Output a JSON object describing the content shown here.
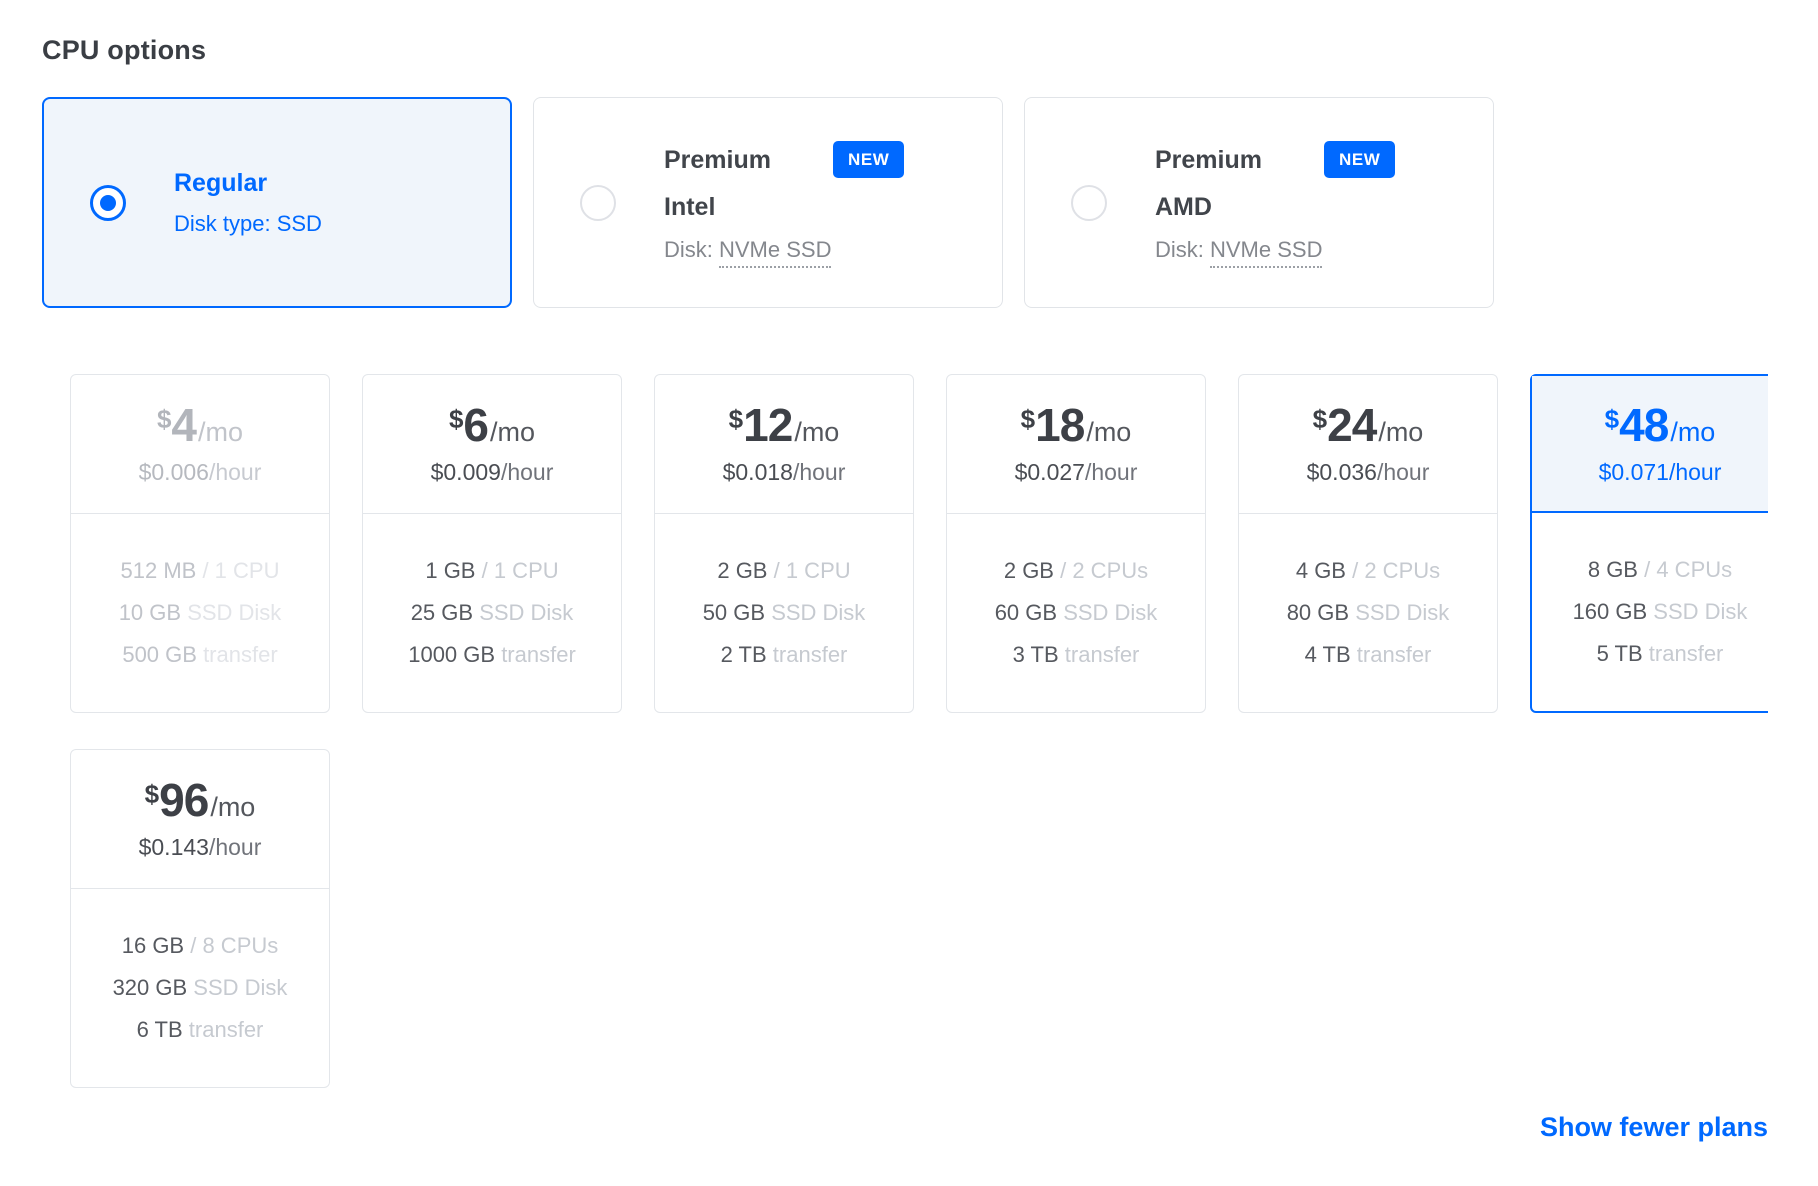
{
  "section": {
    "title": "CPU options"
  },
  "colors": {
    "accent": "#0069ff",
    "selected_bg": "#f0f5fb",
    "card_border": "#e3e6ea"
  },
  "cpu_options": [
    {
      "title": "Regular",
      "subtitle": "Disk type: SSD",
      "selected": true
    },
    {
      "title": "Premium",
      "brand": "Intel",
      "badge": "NEW",
      "disk_prefix": "Disk: ",
      "disk_type": "NVMe SSD",
      "selected": false
    },
    {
      "title": "Premium",
      "brand": "AMD",
      "badge": "NEW",
      "disk_prefix": "Disk: ",
      "disk_type": "NVMe SSD",
      "selected": false
    }
  ],
  "plans": [
    {
      "currency": "$",
      "monthly": "4",
      "monthly_unit": "/mo",
      "hourly": "$0.006",
      "hourly_unit": "/hour",
      "state": "disabled",
      "specs": [
        {
          "value": "512 MB",
          "unit": "/ 1 CPU"
        },
        {
          "value": "10 GB",
          "unit": "SSD Disk"
        },
        {
          "value": "500 GB",
          "unit": "transfer"
        }
      ]
    },
    {
      "currency": "$",
      "monthly": "6",
      "monthly_unit": "/mo",
      "hourly": "$0.009",
      "hourly_unit": "/hour",
      "state": "normal",
      "specs": [
        {
          "value": "1 GB",
          "unit": "/ 1 CPU"
        },
        {
          "value": "25 GB",
          "unit": "SSD Disk"
        },
        {
          "value": "1000 GB",
          "unit": "transfer"
        }
      ]
    },
    {
      "currency": "$",
      "monthly": "12",
      "monthly_unit": "/mo",
      "hourly": "$0.018",
      "hourly_unit": "/hour",
      "state": "normal",
      "specs": [
        {
          "value": "2 GB",
          "unit": "/ 1 CPU"
        },
        {
          "value": "50 GB",
          "unit": "SSD Disk"
        },
        {
          "value": "2 TB",
          "unit": "transfer"
        }
      ]
    },
    {
      "currency": "$",
      "monthly": "18",
      "monthly_unit": "/mo",
      "hourly": "$0.027",
      "hourly_unit": "/hour",
      "state": "normal",
      "specs": [
        {
          "value": "2 GB",
          "unit": "/ 2 CPUs"
        },
        {
          "value": "60 GB",
          "unit": "SSD Disk"
        },
        {
          "value": "3 TB",
          "unit": "transfer"
        }
      ]
    },
    {
      "currency": "$",
      "monthly": "24",
      "monthly_unit": "/mo",
      "hourly": "$0.036",
      "hourly_unit": "/hour",
      "state": "normal",
      "specs": [
        {
          "value": "4 GB",
          "unit": "/ 2 CPUs"
        },
        {
          "value": "80 GB",
          "unit": "SSD Disk"
        },
        {
          "value": "4 TB",
          "unit": "transfer"
        }
      ]
    },
    {
      "currency": "$",
      "monthly": "48",
      "monthly_unit": "/mo",
      "hourly": "$0.071",
      "hourly_unit": "/hour",
      "state": "selected",
      "specs": [
        {
          "value": "8 GB",
          "unit": "/ 4 CPUs"
        },
        {
          "value": "160 GB",
          "unit": "SSD Disk"
        },
        {
          "value": "5 TB",
          "unit": "transfer"
        }
      ]
    },
    {
      "currency": "$",
      "monthly": "96",
      "monthly_unit": "/mo",
      "hourly": "$0.143",
      "hourly_unit": "/hour",
      "state": "normal",
      "specs": [
        {
          "value": "16 GB",
          "unit": "/ 8 CPUs"
        },
        {
          "value": "320 GB",
          "unit": "SSD Disk"
        },
        {
          "value": "6 TB",
          "unit": "transfer"
        }
      ]
    }
  ],
  "footer": {
    "show_fewer_label": "Show fewer plans"
  }
}
